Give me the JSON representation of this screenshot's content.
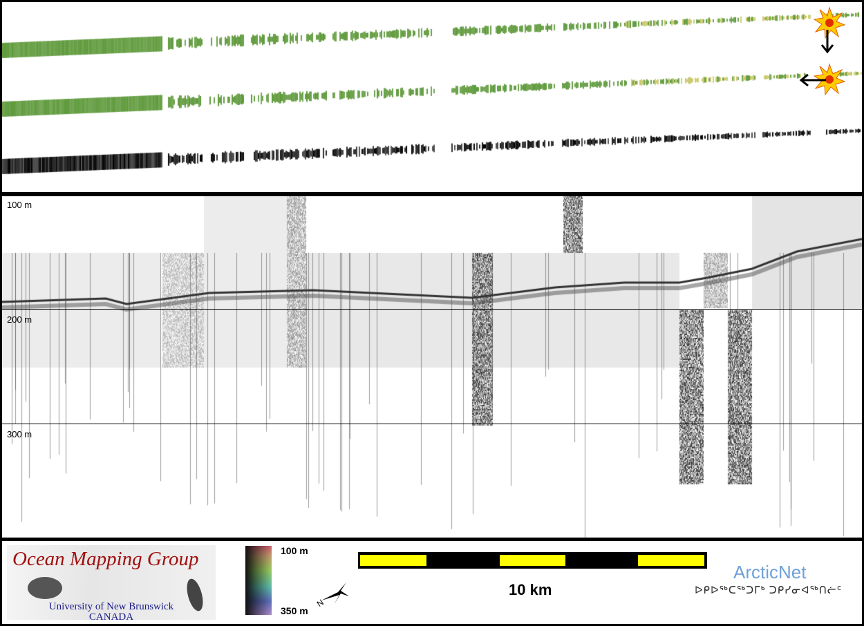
{
  "swath_panel": {
    "strips": [
      "sun-illuminated-north",
      "sun-illuminated-west",
      "backscatter"
    ],
    "colors": {
      "bathymetry": "#5f9a3c",
      "shallow": "#c8c86a",
      "backscatter": "#222222"
    }
  },
  "profile_panel": {
    "depth_labels": [
      "100 m",
      "200 m",
      "300 m"
    ]
  },
  "legend": {
    "logo": {
      "title": "Ocean Mapping Group",
      "subtitle_1": "University of New Brunswick",
      "subtitle_2": "CANADA"
    },
    "colorbar": {
      "top_label": "100 m",
      "bottom_label": "350 m"
    },
    "north_arrow_label": "N",
    "scale_bar_label": "10 km",
    "partner": {
      "name": "ArcticNet",
      "inuktitut": "ᐅᑭᐅᖅᑕᖅᑐᒥᒃ ᑐᑭᓯᓂᐊᖅᑎᓖᑦ"
    }
  }
}
